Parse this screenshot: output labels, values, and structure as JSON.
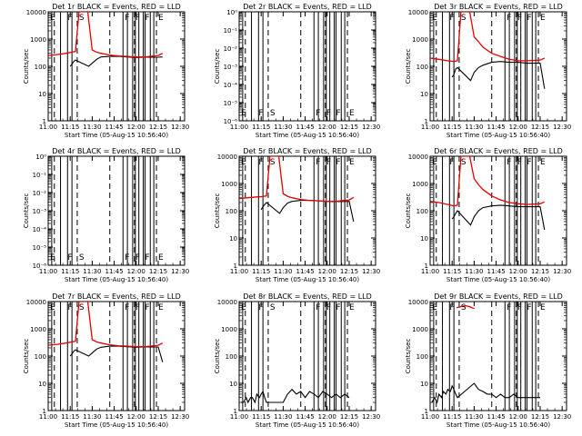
{
  "figure": {
    "x_tick_labels": [
      "11:00",
      "11:15",
      "11:30",
      "11:45",
      "12:00",
      "12:15",
      "12:30"
    ],
    "x_label": "Start Time (05-Aug-15 10:56:40)",
    "y_label": "Counts/sec"
  },
  "chart_data": [
    {
      "type": "line",
      "title": "Det 1r BLACK = Events, RED = LLD",
      "scale": "log",
      "ylim": [
        1,
        10000
      ],
      "y_tick_labels": [
        "1",
        "10",
        "100",
        "1000",
        "10000"
      ],
      "flags": [
        "E",
        "F",
        "S",
        "F",
        "F",
        "F",
        "E"
      ],
      "series": [
        {
          "name": "Events",
          "color": "#000000",
          "x": [
            11.25,
            11.27,
            11.29,
            11.31,
            11.46,
            11.5,
            11.55,
            11.6,
            11.7,
            11.8,
            11.9,
            12.0,
            12.1,
            12.25,
            12.3
          ],
          "y": [
            100,
            120,
            150,
            170,
            100,
            130,
            180,
            220,
            230,
            230,
            220,
            210,
            215,
            215,
            220
          ]
        },
        {
          "name": "LLD",
          "color": "#e60000",
          "x": [
            11.0,
            11.1,
            11.2,
            11.27,
            11.31,
            11.35,
            11.4,
            11.45,
            11.5,
            11.55,
            11.6,
            11.7,
            11.8,
            11.9,
            12.0,
            12.1,
            12.25,
            12.3
          ],
          "y": [
            250,
            270,
            300,
            330,
            350,
            10000,
            10000,
            10000,
            400,
            330,
            300,
            260,
            240,
            230,
            220,
            220,
            250,
            300
          ]
        }
      ]
    },
    {
      "type": "line",
      "title": "Det 2r BLACK = Events, RED = LLD",
      "scale": "log",
      "ylim": [
        1e-06,
        1
      ],
      "y_tick_labels": [
        "10⁻⁶",
        "10⁻⁵",
        "10⁻⁴",
        "10⁻³",
        "10⁻²",
        "10⁻¹",
        "10⁰"
      ],
      "flags": [
        "E",
        "F",
        "S",
        "F",
        "F",
        "F",
        "E"
      ],
      "series": []
    },
    {
      "type": "line",
      "title": "Det 3r BLACK = Events, RED = LLD",
      "scale": "log",
      "ylim": [
        1,
        10000
      ],
      "y_tick_labels": [
        "1",
        "10",
        "100",
        "1000",
        "10000"
      ],
      "flags": [
        "E",
        "F",
        "S",
        "F",
        "F",
        "F",
        "E"
      ],
      "series": [
        {
          "name": "Events",
          "color": "#000000",
          "x": [
            11.25,
            11.27,
            11.29,
            11.31,
            11.46,
            11.5,
            11.55,
            11.6,
            11.7,
            11.8,
            11.9,
            12.0,
            12.1,
            12.25,
            12.3
          ],
          "y": [
            40,
            50,
            80,
            90,
            30,
            60,
            90,
            110,
            140,
            150,
            140,
            140,
            130,
            130,
            15
          ]
        },
        {
          "name": "LLD",
          "color": "#e60000",
          "x": [
            11.0,
            11.1,
            11.2,
            11.27,
            11.31,
            11.35,
            11.4,
            11.45,
            11.5,
            11.55,
            11.6,
            11.7,
            11.8,
            11.9,
            12.0,
            12.1,
            12.25,
            12.3
          ],
          "y": [
            200,
            180,
            160,
            150,
            160,
            10000,
            10000,
            10000,
            1200,
            800,
            500,
            300,
            230,
            180,
            160,
            160,
            170,
            200
          ]
        }
      ]
    },
    {
      "type": "line",
      "title": "Det 4r BLACK = Events, RED = LLD",
      "scale": "log",
      "ylim": [
        1e-06,
        1
      ],
      "y_tick_labels": [
        "10⁻⁶",
        "10⁻⁵",
        "10⁻⁴",
        "10⁻³",
        "10⁻²",
        "10⁻¹",
        "10⁰"
      ],
      "flags": [
        "E",
        "F",
        "S",
        "F",
        "F",
        "F",
        "E"
      ],
      "series": []
    },
    {
      "type": "line",
      "title": "Det 5r BLACK = Events, RED = LLD",
      "scale": "log",
      "ylim": [
        1,
        10000
      ],
      "y_tick_labels": [
        "1",
        "10",
        "100",
        "1000",
        "10000"
      ],
      "flags": [
        "E",
        "F",
        "S",
        "F",
        "F",
        "F",
        "E"
      ],
      "series": [
        {
          "name": "Events",
          "color": "#000000",
          "x": [
            11.25,
            11.27,
            11.29,
            11.31,
            11.46,
            11.5,
            11.55,
            11.6,
            11.7,
            11.8,
            11.9,
            12.0,
            12.1,
            12.25,
            12.3
          ],
          "y": [
            110,
            140,
            170,
            200,
            80,
            130,
            190,
            220,
            240,
            240,
            230,
            220,
            215,
            220,
            40
          ]
        },
        {
          "name": "LLD",
          "color": "#e60000",
          "x": [
            11.0,
            11.1,
            11.2,
            11.27,
            11.31,
            11.35,
            11.4,
            11.45,
            11.5,
            11.55,
            11.6,
            11.7,
            11.8,
            11.9,
            12.0,
            12.1,
            12.25,
            12.3
          ],
          "y": [
            280,
            300,
            320,
            330,
            350,
            10000,
            10000,
            10000,
            420,
            340,
            300,
            260,
            240,
            230,
            220,
            220,
            250,
            310
          ]
        }
      ]
    },
    {
      "type": "line",
      "title": "Det 6r BLACK = Events, RED = LLD",
      "scale": "log",
      "ylim": [
        1,
        10000
      ],
      "y_tick_labels": [
        "1",
        "10",
        "100",
        "1000",
        "10000"
      ],
      "flags": [
        "E",
        "F",
        "S",
        "F",
        "F",
        "F",
        "E"
      ],
      "series": [
        {
          "name": "Events",
          "color": "#000000",
          "x": [
            11.25,
            11.27,
            11.29,
            11.31,
            11.46,
            11.5,
            11.55,
            11.6,
            11.7,
            11.8,
            11.9,
            12.0,
            12.1,
            12.25,
            12.3
          ],
          "y": [
            50,
            60,
            80,
            100,
            30,
            60,
            100,
            130,
            150,
            160,
            150,
            140,
            140,
            140,
            20
          ]
        },
        {
          "name": "LLD",
          "color": "#e60000",
          "x": [
            11.0,
            11.1,
            11.2,
            11.27,
            11.31,
            11.35,
            11.4,
            11.45,
            11.5,
            11.55,
            11.6,
            11.7,
            11.8,
            11.9,
            12.0,
            12.1,
            12.25,
            12.3
          ],
          "y": [
            220,
            200,
            170,
            150,
            160,
            10000,
            10000,
            10000,
            1500,
            900,
            600,
            350,
            250,
            200,
            180,
            170,
            180,
            210
          ]
        }
      ]
    },
    {
      "type": "line",
      "title": "Det 7r BLACK = Events, RED = LLD",
      "scale": "log",
      "ylim": [
        1,
        10000
      ],
      "y_tick_labels": [
        "1",
        "10",
        "100",
        "1000",
        "10000"
      ],
      "flags": [
        "E",
        "F",
        "S",
        "F",
        "F",
        "F",
        "E"
      ],
      "series": [
        {
          "name": "Events",
          "color": "#000000",
          "x": [
            11.25,
            11.27,
            11.29,
            11.31,
            11.46,
            11.5,
            11.55,
            11.6,
            11.7,
            11.8,
            11.9,
            12.0,
            12.1,
            12.25,
            12.3
          ],
          "y": [
            100,
            120,
            150,
            170,
            100,
            130,
            180,
            210,
            230,
            230,
            220,
            210,
            215,
            215,
            60
          ]
        },
        {
          "name": "LLD",
          "color": "#e60000",
          "x": [
            11.0,
            11.1,
            11.2,
            11.27,
            11.31,
            11.35,
            11.4,
            11.45,
            11.5,
            11.55,
            11.6,
            11.7,
            11.8,
            11.9,
            12.0,
            12.1,
            12.25,
            12.3
          ],
          "y": [
            250,
            270,
            300,
            330,
            350,
            10000,
            10000,
            10000,
            400,
            330,
            300,
            260,
            240,
            230,
            220,
            220,
            250,
            300
          ]
        }
      ]
    },
    {
      "type": "line",
      "title": "Det 8r BLACK = Events, RED = LLD",
      "scale": "log",
      "ylim": [
        1,
        10000
      ],
      "y_tick_labels": [
        "1",
        "10",
        "100",
        "1000",
        "10000"
      ],
      "flags": [
        "E",
        "F",
        "S",
        "F",
        "F",
        "F",
        "E"
      ],
      "series": [
        {
          "name": "Events",
          "color": "#000000",
          "x": [
            11.02,
            11.05,
            11.08,
            11.1,
            11.13,
            11.15,
            11.18,
            11.2,
            11.23,
            11.25,
            11.27,
            11.29,
            11.31,
            11.5,
            11.55,
            11.6,
            11.65,
            11.7,
            11.75,
            11.8,
            11.85,
            11.9,
            11.95,
            12.0,
            12.05,
            12.1,
            12.15,
            12.2,
            12.25
          ],
          "y": [
            2,
            2,
            3,
            2,
            3,
            3,
            2,
            4,
            3,
            4,
            5,
            3,
            2,
            2,
            4,
            6,
            4,
            5,
            3,
            5,
            4,
            3,
            5,
            4,
            3,
            4,
            3,
            4,
            3
          ]
        }
      ]
    },
    {
      "type": "line",
      "title": "Det 9r BLACK = Events, RED = LLD",
      "scale": "log",
      "ylim": [
        1,
        10000
      ],
      "y_tick_labels": [
        "1",
        "10",
        "100",
        "1000",
        "10000"
      ],
      "flags": [
        "E",
        "F",
        "S",
        "F",
        "F",
        "F",
        "E"
      ],
      "series": [
        {
          "name": "Events",
          "color": "#000000",
          "x": [
            11.02,
            11.05,
            11.08,
            11.1,
            11.13,
            11.15,
            11.18,
            11.2,
            11.23,
            11.25,
            11.27,
            11.29,
            11.31,
            11.5,
            11.55,
            11.6,
            11.65,
            11.7,
            11.75,
            11.8,
            11.85,
            11.9,
            11.95,
            12.0,
            12.05,
            12.1,
            12.15,
            12.2,
            12.25
          ],
          "y": [
            2,
            3,
            2,
            4,
            3,
            5,
            4,
            6,
            5,
            8,
            6,
            4,
            3,
            10,
            6,
            5,
            4,
            4,
            3,
            4,
            3,
            3,
            4,
            3,
            3,
            3,
            3,
            3,
            3
          ]
        },
        {
          "name": "LLD",
          "color": "#e60000",
          "x": [
            11.3,
            11.35,
            11.4,
            11.45,
            11.5
          ],
          "y": [
            6000,
            6500,
            7000,
            6500,
            5500
          ]
        }
      ]
    }
  ]
}
